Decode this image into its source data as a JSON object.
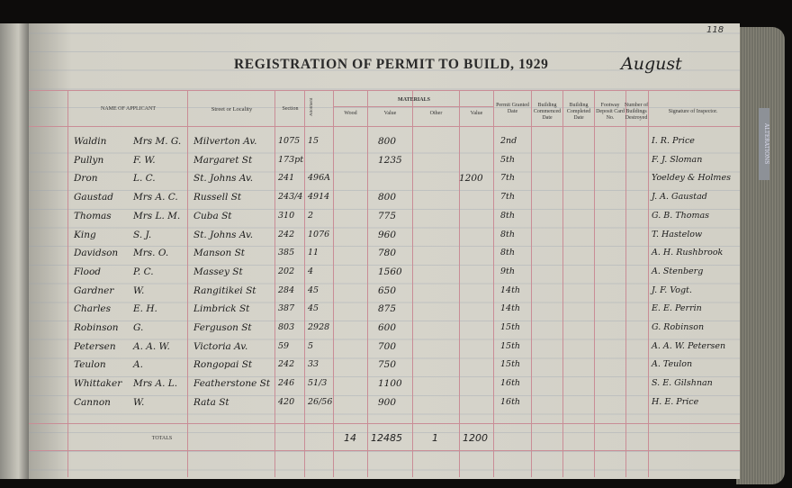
{
  "page_number": "118",
  "title": "REGISTRATION OF PERMIT TO BUILD, 1929",
  "month": "August",
  "side_tab": "ALTERATIONS",
  "headers": {
    "name": "NAME OF APPLICANT",
    "street": "Street or Locality",
    "section": "Section",
    "allotment": "Allotment",
    "materials": "MATERIALS",
    "wood": "Wood",
    "value1": "Value",
    "other": "Other",
    "value2": "Value",
    "permit": "Permit Granted Date",
    "commenced": "Building Commenced Date",
    "completed": "Building Completed Date",
    "footway": "Footway Deposit Card No.",
    "destroyed": "Number of Buildings Destroyed",
    "signature": "Signature of Inspector."
  },
  "rows": [
    {
      "surname": "Waldin",
      "initials": "Mrs M. G.",
      "street": "Milverton Av.",
      "section": "1075",
      "allotment": "15",
      "value": "800",
      "other_value": "",
      "date": "2nd",
      "inspector": "I. R. Price"
    },
    {
      "surname": "Pullyn",
      "initials": "F. W.",
      "street": "Margaret St",
      "section": "173pt",
      "allotment": "",
      "value": "1235",
      "other_value": "",
      "date": "5th",
      "inspector": "F. J. Sloman"
    },
    {
      "surname": "Dron",
      "initials": "L. C.",
      "street": "St. Johns Av.",
      "section": "241",
      "allotment": "496A",
      "value": "",
      "other_value": "1200",
      "date": "7th",
      "inspector": "Yoeldey & Holmes"
    },
    {
      "surname": "Gaustad",
      "initials": "Mrs A. C.",
      "street": "Russell St",
      "section": "243/4",
      "allotment": "4914",
      "value": "800",
      "other_value": "",
      "date": "7th",
      "inspector": "J. A. Gaustad"
    },
    {
      "surname": "Thomas",
      "initials": "Mrs L. M.",
      "street": "Cuba St",
      "section": "310",
      "allotment": "2",
      "value": "775",
      "other_value": "",
      "date": "8th",
      "inspector": "G. B. Thomas"
    },
    {
      "surname": "King",
      "initials": "S. J.",
      "street": "St. Johns Av.",
      "section": "242",
      "allotment": "1076",
      "value": "960",
      "other_value": "",
      "date": "8th",
      "inspector": "T. Hastelow"
    },
    {
      "surname": "Davidson",
      "initials": "Mrs. O.",
      "street": "Manson St",
      "section": "385",
      "allotment": "11",
      "value": "780",
      "other_value": "",
      "date": "8th",
      "inspector": "A. H. Rushbrook"
    },
    {
      "surname": "Flood",
      "initials": "P. C.",
      "street": "Massey St",
      "section": "202",
      "allotment": "4",
      "value": "1560",
      "other_value": "",
      "date": "9th",
      "inspector": "A. Stenberg"
    },
    {
      "surname": "Gardner",
      "initials": "W.",
      "street": "Rangitikei St",
      "section": "284",
      "allotment": "45",
      "value": "650",
      "other_value": "",
      "date": "14th",
      "inspector": "J. F. Vogt."
    },
    {
      "surname": "Charles",
      "initials": "E. H.",
      "street": "Limbrick St",
      "section": "387",
      "allotment": "45",
      "value": "875",
      "other_value": "",
      "date": "14th",
      "inspector": "E. E. Perrin"
    },
    {
      "surname": "Robinson",
      "initials": "G.",
      "street": "Ferguson St",
      "section": "803",
      "allotment": "2928",
      "value": "600",
      "other_value": "",
      "date": "15th",
      "inspector": "G. Robinson"
    },
    {
      "surname": "Petersen",
      "initials": "A. A. W.",
      "street": "Victoria Av.",
      "section": "59",
      "allotment": "5",
      "value": "700",
      "other_value": "",
      "date": "15th",
      "inspector": "A. A. W. Petersen"
    },
    {
      "surname": "Teulon",
      "initials": "A.",
      "street": "Rongopai St",
      "section": "242",
      "allotment": "33",
      "value": "750",
      "other_value": "",
      "date": "15th",
      "inspector": "A. Teulon"
    },
    {
      "surname": "Whittaker",
      "initials": "Mrs A. L.",
      "street": "Featherstone St",
      "section": "246",
      "allotment": "51/3",
      "value": "1100",
      "other_value": "",
      "date": "16th",
      "inspector": "S. E. Gilshnan"
    },
    {
      "surname": "Cannon",
      "initials": "W.",
      "street": "Rata St",
      "section": "420",
      "allotment": "26/56",
      "value": "900",
      "other_value": "",
      "date": "16th",
      "inspector": "H. E. Price"
    }
  ],
  "totals": {
    "label": "TOTALS",
    "wood": "14",
    "value": "12485",
    "other": "1",
    "other_value": "1200"
  }
}
